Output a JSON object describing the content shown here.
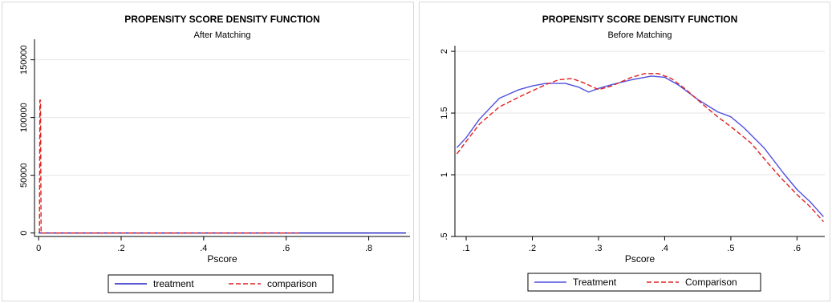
{
  "chart_data": [
    {
      "type": "line",
      "title": "PROPENSITY SCORE DENSITY FUNCTION",
      "subtitle": "After Matching",
      "xlabel": "Pscore",
      "ylabel": "",
      "xlim": [
        -0.01,
        0.9
      ],
      "ylim": [
        -3000,
        165000
      ],
      "xticks": [
        0,
        0.2,
        0.4,
        0.6,
        0.8
      ],
      "xtick_labels": [
        "0",
        ".2",
        ".4",
        ".6",
        ".8"
      ],
      "yticks": [
        0,
        50000,
        100000,
        150000
      ],
      "ytick_labels": [
        "0",
        "50000",
        "100000",
        "150000"
      ],
      "grid": true,
      "legend_position": "bottom",
      "series": [
        {
          "name": "treatment",
          "style": "solid",
          "color": "#1f1fbf",
          "x": [
            0.0,
            0.1,
            0.2,
            0.3,
            0.4,
            0.5,
            0.6,
            0.7,
            0.8,
            0.89
          ],
          "y": [
            0,
            0,
            0,
            0,
            0,
            0,
            0,
            0,
            0,
            0
          ]
        },
        {
          "name": "comparison",
          "style": "dashed",
          "color": "#e02020",
          "x": [
            0.002,
            0.003,
            0.0045,
            0.006,
            0.01,
            0.1,
            0.3,
            0.5,
            0.63
          ],
          "y": [
            0,
            115000,
            115000,
            0,
            0,
            0,
            0,
            0,
            0
          ]
        }
      ]
    },
    {
      "type": "line",
      "title": "PROPENSITY SCORE DENSITY FUNCTION",
      "subtitle": "Before Matching",
      "xlabel": "Pscore",
      "ylabel": "",
      "xlim": [
        0.083,
        0.642
      ],
      "ylim": [
        0.5,
        2.02
      ],
      "xticks": [
        0.1,
        0.2,
        0.3,
        0.4,
        0.5,
        0.6
      ],
      "xtick_labels": [
        ".1",
        ".2",
        ".3",
        ".4",
        ".5",
        ".6"
      ],
      "yticks": [
        0.5,
        1,
        1.5,
        2
      ],
      "ytick_labels": [
        ".5",
        "1",
        "1.5",
        "2"
      ],
      "grid": true,
      "legend_position": "bottom",
      "series": [
        {
          "name": "Treatment",
          "style": "solid",
          "color": "#5050e0",
          "x": [
            0.086,
            0.1,
            0.12,
            0.15,
            0.18,
            0.2,
            0.22,
            0.25,
            0.27,
            0.285,
            0.3,
            0.32,
            0.35,
            0.38,
            0.4,
            0.42,
            0.45,
            0.48,
            0.5,
            0.52,
            0.55,
            0.58,
            0.6,
            0.62,
            0.64
          ],
          "y": [
            1.22,
            1.3,
            1.45,
            1.62,
            1.69,
            1.72,
            1.74,
            1.74,
            1.71,
            1.67,
            1.7,
            1.73,
            1.77,
            1.8,
            1.79,
            1.73,
            1.61,
            1.51,
            1.47,
            1.38,
            1.22,
            1.01,
            0.88,
            0.78,
            0.66
          ]
        },
        {
          "name": "Comparison",
          "style": "dashed",
          "color": "#e02020",
          "x": [
            0.086,
            0.1,
            0.12,
            0.15,
            0.18,
            0.2,
            0.22,
            0.24,
            0.26,
            0.28,
            0.3,
            0.32,
            0.35,
            0.37,
            0.39,
            0.41,
            0.43,
            0.46,
            0.48,
            0.5,
            0.53,
            0.56,
            0.58,
            0.6,
            0.62,
            0.64
          ],
          "y": [
            1.17,
            1.27,
            1.41,
            1.55,
            1.63,
            1.68,
            1.73,
            1.77,
            1.78,
            1.74,
            1.69,
            1.72,
            1.79,
            1.82,
            1.82,
            1.78,
            1.7,
            1.56,
            1.47,
            1.39,
            1.26,
            1.07,
            0.95,
            0.84,
            0.74,
            0.62
          ]
        }
      ]
    }
  ]
}
